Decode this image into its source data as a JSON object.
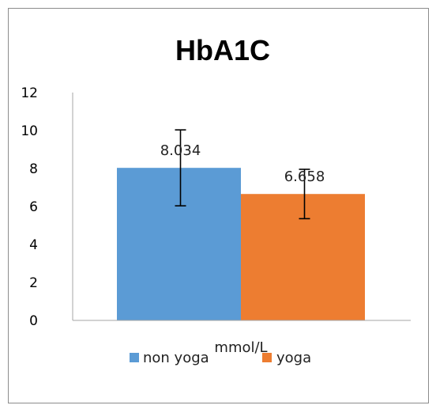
{
  "chart_data": {
    "type": "bar",
    "title": "HbA1C",
    "xlabel": "mmol/L",
    "ylabel": "",
    "ylim": [
      0,
      12
    ],
    "yticks": [
      0,
      2,
      4,
      6,
      8,
      10,
      12
    ],
    "grid": false,
    "legend_position": "bottom",
    "categories": [
      "mmol/L"
    ],
    "series": [
      {
        "name": "non yoga",
        "values": [
          8.034
        ],
        "error": [
          2.0
        ],
        "color": "#5b9bd5",
        "label": "8.034"
      },
      {
        "name": "yoga",
        "values": [
          6.658
        ],
        "error": [
          1.3
        ],
        "color": "#ed7d31",
        "label": "6.658"
      }
    ]
  }
}
